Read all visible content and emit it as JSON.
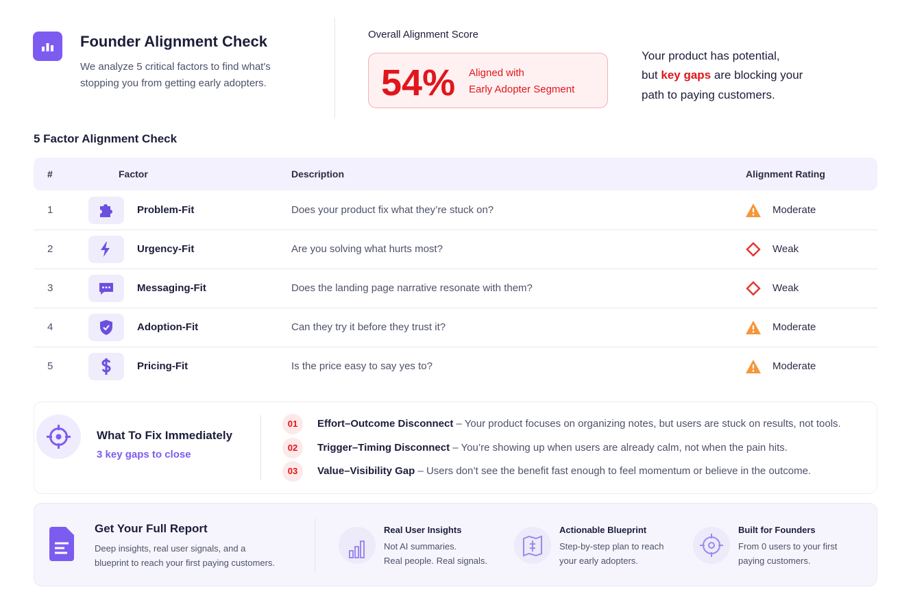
{
  "header": {
    "title": "Founder Alignment Check",
    "subtitle": [
      "We analyze 5 critical factors to find what's",
      "stopping you from getting early adopters."
    ]
  },
  "score": {
    "label": "Overall Alignment Score",
    "value": "54%",
    "caption": [
      "Aligned with",
      "Early Adopter Segment"
    ]
  },
  "summary": {
    "line1": "Your product has potential,",
    "before": "but",
    "highlight": "key gaps",
    "after": "are blocking your",
    "line3": "path to paying customers."
  },
  "table": {
    "title": "5 Factor Alignment Check",
    "columns": [
      "#",
      "Factor",
      "Description",
      "Alignment Rating"
    ],
    "rows": [
      {
        "number": 1,
        "factor": "Problem-Fit",
        "description": "Does your product fix what they’re stuck on?",
        "rating": "Moderate"
      },
      {
        "number": 2,
        "factor": "Urgency-Fit",
        "description": "Are you solving what hurts most?",
        "rating": "Weak"
      },
      {
        "number": 3,
        "factor": "Messaging-Fit",
        "description": "Does the landing page narrative resonate with them?",
        "rating": "Weak"
      },
      {
        "number": 4,
        "factor": "Adoption-Fit",
        "description": "Can they try it before they trust it?",
        "rating": "Moderate"
      },
      {
        "number": 5,
        "factor": "Pricing-Fit",
        "description": "Is the price easy to say yes to?",
        "rating": "Moderate"
      }
    ]
  },
  "fix": {
    "title": "What To Fix Immediately",
    "subtitle": "3 key gaps to close",
    "items": [
      {
        "number": "01",
        "title": "Effort–Outcome Disconnect",
        "text": "– Your product focuses on organizing notes, but users are stuck on results, not tools."
      },
      {
        "number": "02",
        "title": "Trigger–Timing Disconnect",
        "text": "– You’re showing up when users are already calm, not when the pain hits."
      },
      {
        "number": "03",
        "title": "Value–Visibility Gap",
        "text": "– Users don’t see the benefit fast enough to feel momentum or believe in the outcome."
      }
    ]
  },
  "report": {
    "title": "Get Your Full Report",
    "description": [
      "Deep insights, real user signals, and a",
      "blueprint to reach your first paying customers."
    ],
    "features": [
      {
        "title": "Real User Insights",
        "lines": [
          "Not AI summaries.",
          "Real people. Real signals."
        ]
      },
      {
        "title": "Actionable Blueprint",
        "lines": [
          "Step-by-step plan to reach",
          "your early adopters."
        ]
      },
      {
        "title": "Built for Founders",
        "lines": [
          "From 0 users to your first",
          "paying customers."
        ]
      }
    ]
  }
}
